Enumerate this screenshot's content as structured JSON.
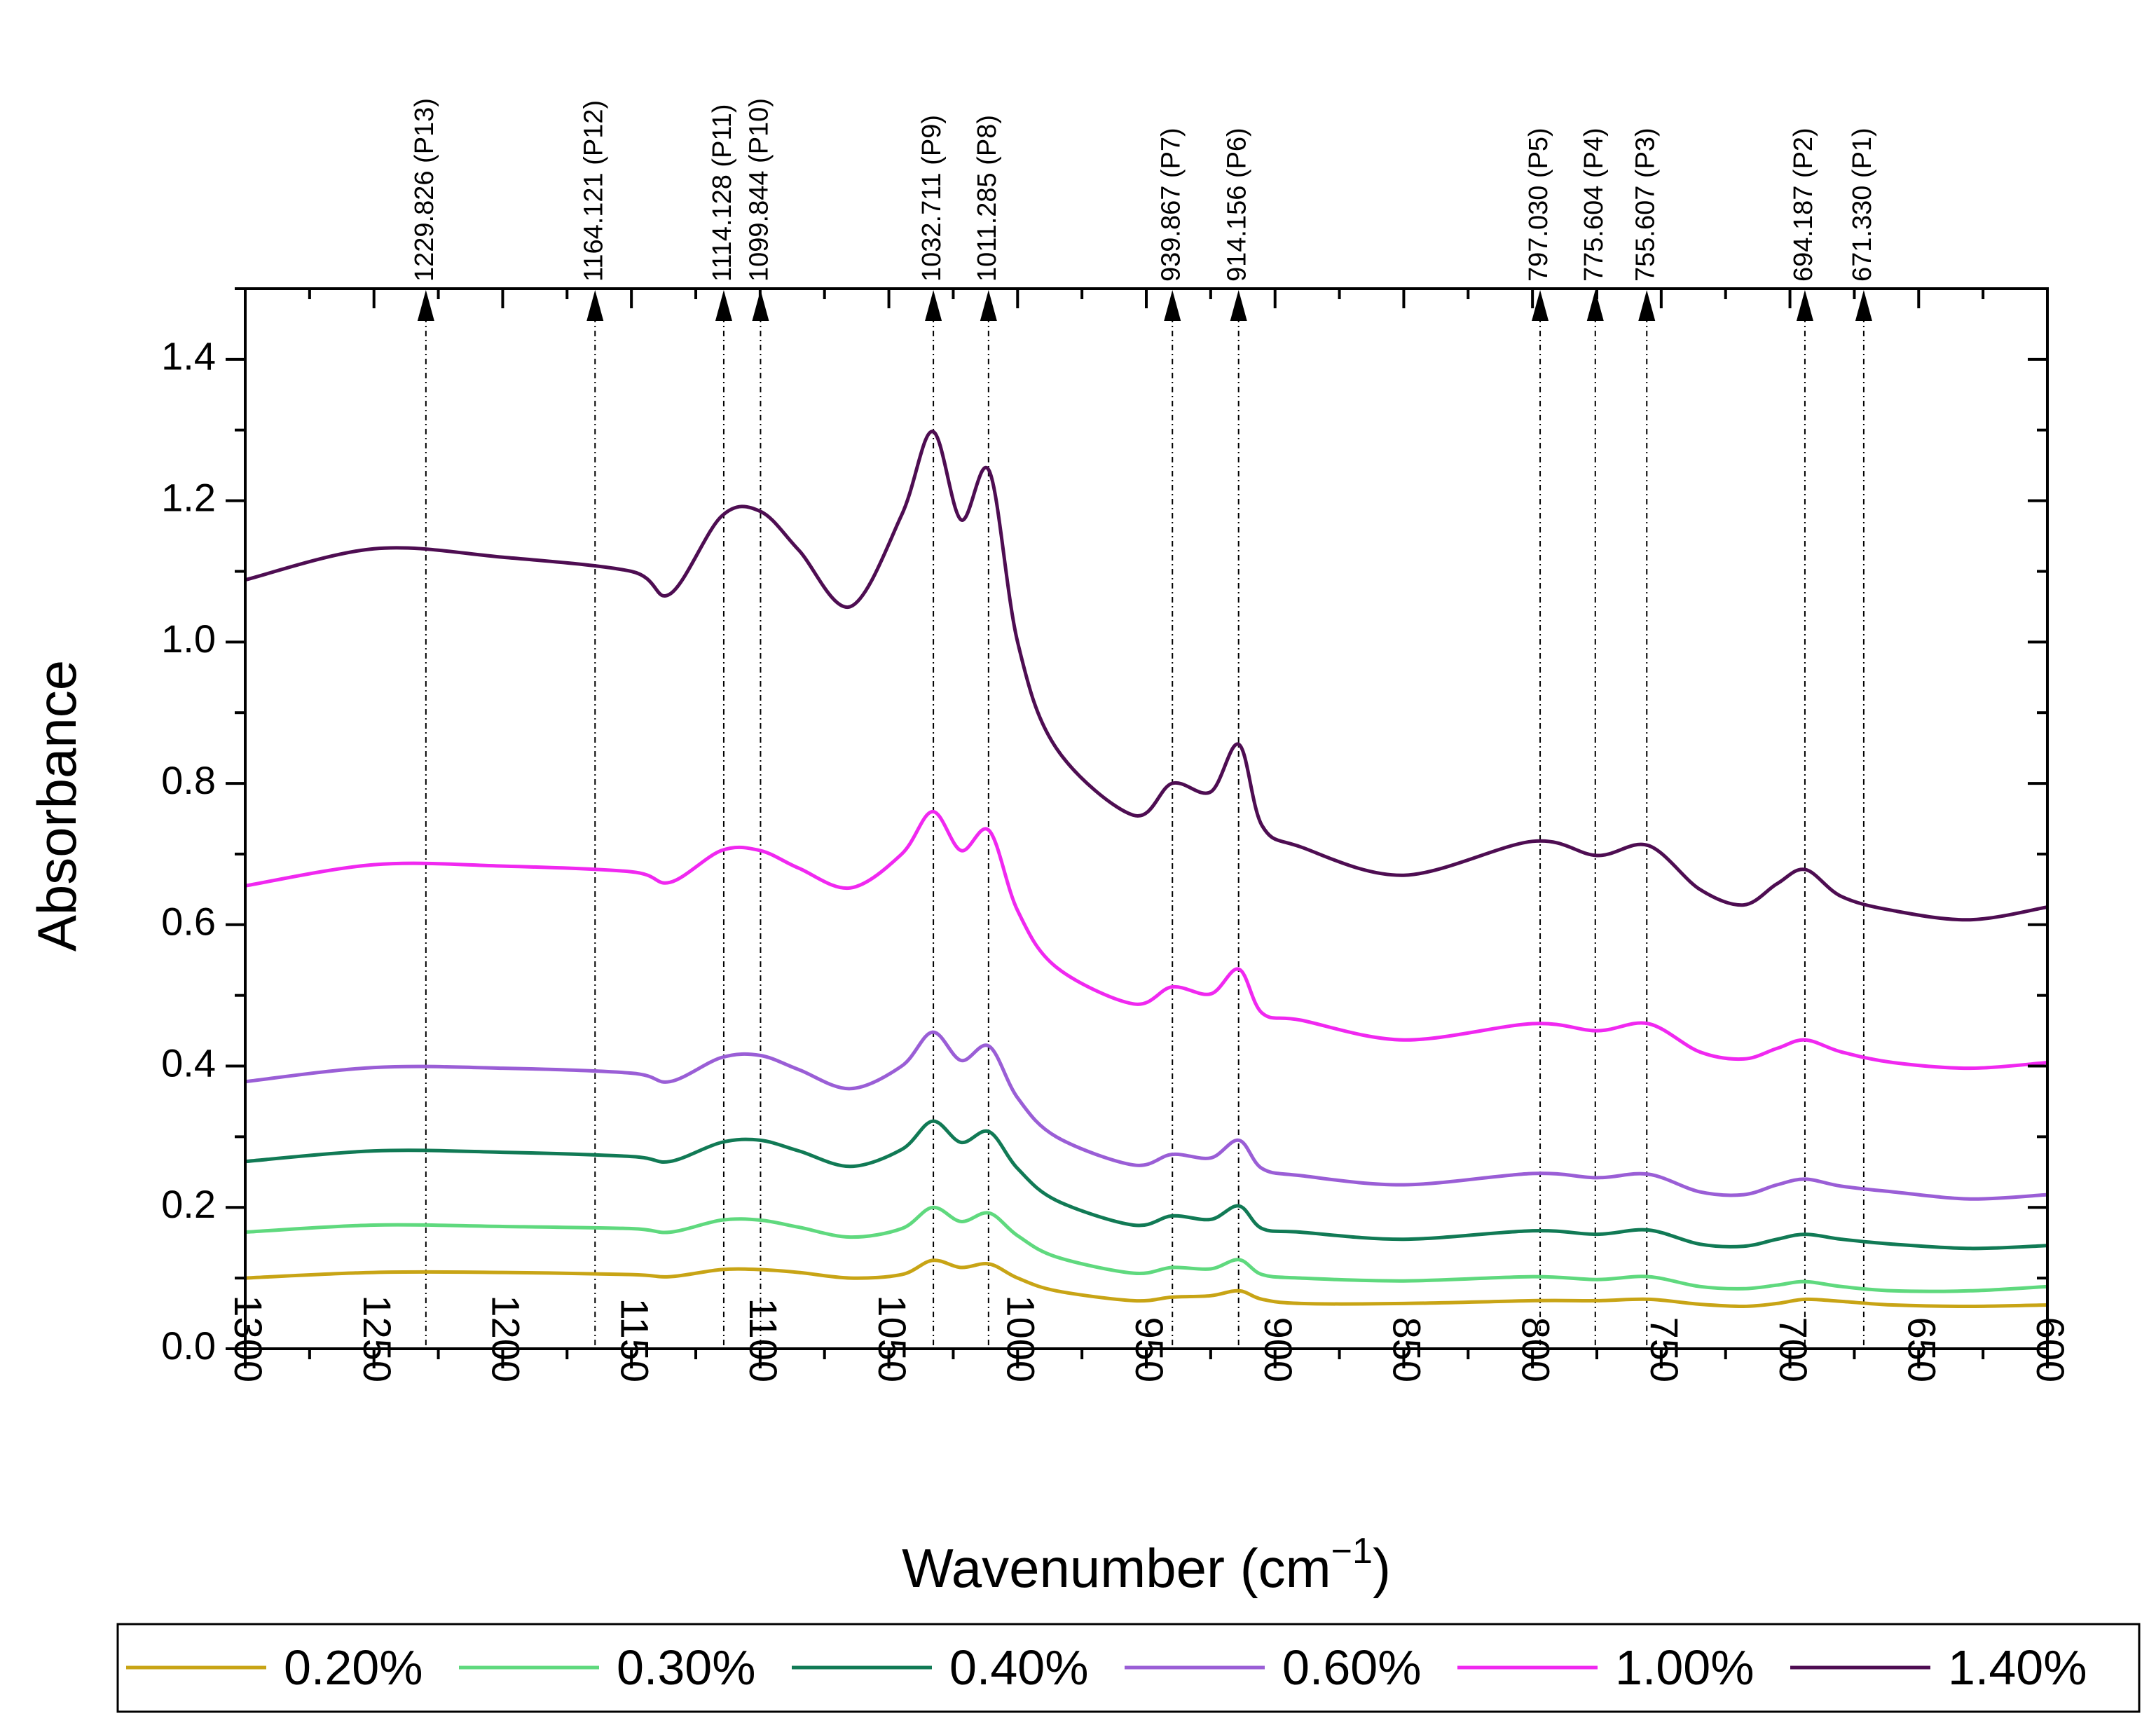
{
  "chart_data": {
    "type": "line",
    "title": "",
    "xlabel": "Wavenumber (cm",
    "xlabel_sup": "−1",
    "xlabel_close": ")",
    "ylabel": "Absorbance",
    "xlim": [
      1300,
      600
    ],
    "ylim": [
      0,
      1.5
    ],
    "x_ticks": [
      "1300",
      "1250",
      "1200",
      "1150",
      "1100",
      "1050",
      "1000",
      "950",
      "900",
      "850",
      "800",
      "750",
      "700",
      "650",
      "600"
    ],
    "y_ticks": [
      "0.0",
      "0.2",
      "0.4",
      "0.6",
      "0.8",
      "1.0",
      "1.2",
      "1.4"
    ],
    "grid": false,
    "legend_position": "bottom",
    "peaks": [
      {
        "x": 1229.826,
        "label": "1229.826 (P13)"
      },
      {
        "x": 1164.121,
        "label": "1164.121 (P12)"
      },
      {
        "x": 1114.128,
        "label": "1114.128 (P11)"
      },
      {
        "x": 1099.844,
        "label": "1099.844 (P10)"
      },
      {
        "x": 1032.711,
        "label": "1032.711 (P9)"
      },
      {
        "x": 1011.285,
        "label": "1011.285 (P8)"
      },
      {
        "x": 939.867,
        "label": "939.867 (P7)"
      },
      {
        "x": 914.156,
        "label": "914.156 (P6)"
      },
      {
        "x": 797.03,
        "label": "797.030 (P5)"
      },
      {
        "x": 775.604,
        "label": "775.604 (P4)"
      },
      {
        "x": 755.607,
        "label": "755.607 (P3)"
      },
      {
        "x": 694.187,
        "label": "694.187 (P2)"
      },
      {
        "x": 671.33,
        "label": "671.330 (P1)"
      }
    ],
    "series": [
      {
        "name": "0.20%",
        "color": "#c8a415",
        "x": [
          1300,
          1250,
          1200,
          1150,
          1135,
          1115,
          1100,
          1085,
          1065,
          1045,
          1033,
          1022,
          1011,
          1000,
          985,
          955,
          940,
          925,
          914,
          905,
          890,
          850,
          800,
          775,
          755,
          735,
          718,
          705,
          694,
          680,
          660,
          630,
          600
        ],
        "y": [
          0.1,
          0.108,
          0.108,
          0.105,
          0.102,
          0.112,
          0.112,
          0.108,
          0.1,
          0.105,
          0.125,
          0.115,
          0.12,
          0.1,
          0.082,
          0.068,
          0.073,
          0.075,
          0.082,
          0.07,
          0.064,
          0.064,
          0.068,
          0.068,
          0.07,
          0.063,
          0.06,
          0.064,
          0.07,
          0.067,
          0.062,
          0.06,
          0.062
        ]
      },
      {
        "name": "0.30%",
        "color": "#5fd97e",
        "x": [
          1300,
          1250,
          1200,
          1150,
          1135,
          1115,
          1100,
          1085,
          1065,
          1045,
          1033,
          1022,
          1011,
          1000,
          985,
          955,
          940,
          925,
          914,
          905,
          890,
          850,
          800,
          775,
          755,
          735,
          718,
          705,
          694,
          680,
          660,
          630,
          600
        ],
        "y": [
          0.165,
          0.175,
          0.173,
          0.17,
          0.165,
          0.182,
          0.182,
          0.172,
          0.158,
          0.17,
          0.2,
          0.18,
          0.192,
          0.16,
          0.13,
          0.107,
          0.115,
          0.113,
          0.126,
          0.105,
          0.1,
          0.096,
          0.102,
          0.098,
          0.102,
          0.088,
          0.085,
          0.09,
          0.095,
          0.088,
          0.082,
          0.082,
          0.088
        ]
      },
      {
        "name": "0.40%",
        "color": "#117a55",
        "x": [
          1300,
          1250,
          1200,
          1150,
          1135,
          1115,
          1100,
          1085,
          1065,
          1045,
          1033,
          1022,
          1011,
          1000,
          985,
          955,
          940,
          925,
          914,
          905,
          890,
          850,
          800,
          775,
          755,
          735,
          718,
          705,
          694,
          680,
          660,
          630,
          600
        ],
        "y": [
          0.265,
          0.28,
          0.278,
          0.272,
          0.265,
          0.292,
          0.295,
          0.28,
          0.258,
          0.282,
          0.322,
          0.292,
          0.307,
          0.255,
          0.21,
          0.175,
          0.188,
          0.183,
          0.202,
          0.17,
          0.165,
          0.155,
          0.167,
          0.162,
          0.168,
          0.148,
          0.145,
          0.155,
          0.162,
          0.155,
          0.148,
          0.142,
          0.146
        ]
      },
      {
        "name": "0.60%",
        "color": "#9a5ed6",
        "x": [
          1300,
          1250,
          1200,
          1150,
          1135,
          1115,
          1100,
          1085,
          1065,
          1045,
          1033,
          1022,
          1011,
          1000,
          985,
          955,
          940,
          925,
          914,
          905,
          890,
          850,
          800,
          775,
          755,
          735,
          718,
          705,
          694,
          680,
          660,
          630,
          600
        ],
        "y": [
          0.378,
          0.398,
          0.397,
          0.39,
          0.378,
          0.412,
          0.415,
          0.395,
          0.368,
          0.4,
          0.448,
          0.408,
          0.428,
          0.355,
          0.3,
          0.26,
          0.275,
          0.27,
          0.295,
          0.255,
          0.245,
          0.232,
          0.248,
          0.242,
          0.247,
          0.222,
          0.218,
          0.232,
          0.24,
          0.23,
          0.222,
          0.212,
          0.218
        ]
      },
      {
        "name": "1.00%",
        "color": "#f028f0",
        "x": [
          1300,
          1250,
          1200,
          1150,
          1135,
          1115,
          1100,
          1085,
          1065,
          1045,
          1033,
          1022,
          1011,
          1000,
          985,
          955,
          940,
          925,
          914,
          905,
          890,
          850,
          800,
          775,
          755,
          735,
          718,
          705,
          694,
          680,
          660,
          630,
          600
        ],
        "y": [
          0.655,
          0.685,
          0.683,
          0.675,
          0.66,
          0.705,
          0.705,
          0.68,
          0.652,
          0.7,
          0.76,
          0.705,
          0.733,
          0.62,
          0.54,
          0.488,
          0.512,
          0.502,
          0.537,
          0.475,
          0.465,
          0.437,
          0.46,
          0.45,
          0.46,
          0.42,
          0.41,
          0.425,
          0.437,
          0.42,
          0.405,
          0.397,
          0.405
        ]
      },
      {
        "name": "1.40%",
        "color": "#4e0d52",
        "x": [
          1300,
          1250,
          1200,
          1150,
          1135,
          1115,
          1100,
          1085,
          1065,
          1045,
          1033,
          1022,
          1011,
          1000,
          985,
          955,
          940,
          925,
          914,
          905,
          890,
          850,
          800,
          775,
          755,
          735,
          718,
          705,
          694,
          680,
          660,
          630,
          600
        ],
        "y": [
          1.088,
          1.132,
          1.12,
          1.1,
          1.068,
          1.178,
          1.185,
          1.13,
          1.05,
          1.18,
          1.298,
          1.173,
          1.242,
          1.0,
          0.85,
          0.755,
          0.8,
          0.788,
          0.855,
          0.74,
          0.71,
          0.67,
          0.718,
          0.698,
          0.712,
          0.65,
          0.628,
          0.658,
          0.678,
          0.64,
          0.62,
          0.607,
          0.625
        ]
      }
    ]
  }
}
